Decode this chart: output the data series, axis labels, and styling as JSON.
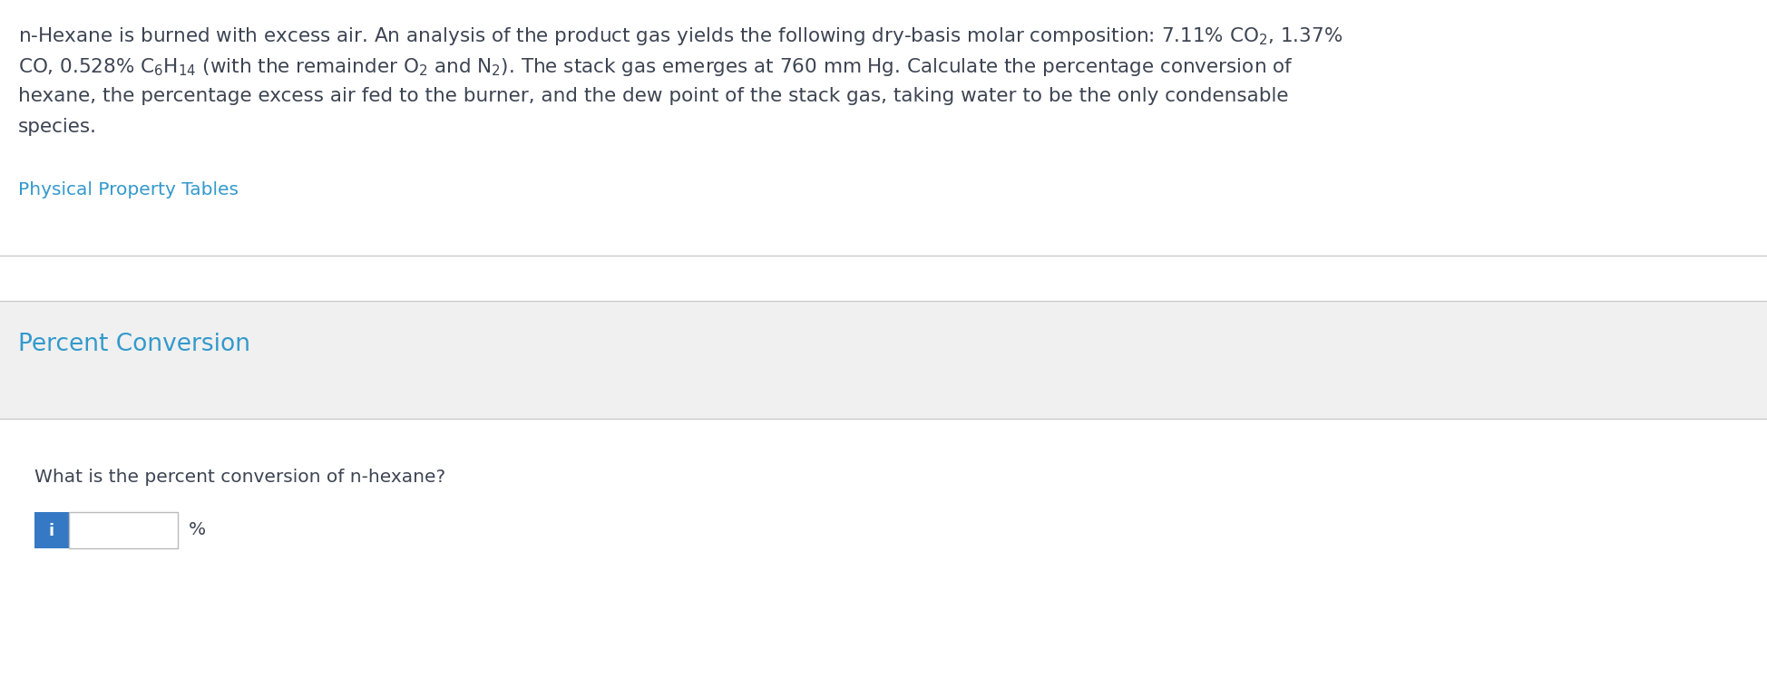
{
  "bg_color": "#ffffff",
  "gray_bg": "#f0f0f0",
  "paragraph_lines": [
    "n-Hexane is burned with excess air. An analysis of the product gas yields the following dry-basis molar composition: 7.11% CO$_2$, 1.37%",
    "CO, 0.528% C$_6$H$_{14}$ (with the remainder O$_2$ and N$_2$). The stack gas emerges at 760 mm Hg. Calculate the percentage conversion of",
    "hexane, the percentage excess air fed to the burner, and the dew point of the stack gas, taking water to be the only condensable",
    "species."
  ],
  "link_text": "Physical Property Tables",
  "link_color": "#3399cc",
  "section_title": "Percent Conversion",
  "section_title_color": "#3399cc",
  "question_text": "What is the percent conversion of n-hexane?",
  "percent_symbol": "%",
  "input_box_color": "#ffffff",
  "input_border_color": "#bbbbbb",
  "info_button_color": "#3579c4",
  "info_button_text": "i",
  "text_color": "#3d4452",
  "divider_color": "#cccccc",
  "font_size_paragraph": 15.5,
  "font_size_link": 14.5,
  "font_size_section": 19,
  "font_size_question": 14.5,
  "fig_width": 19.48,
  "fig_height": 7.58,
  "dpi": 100
}
